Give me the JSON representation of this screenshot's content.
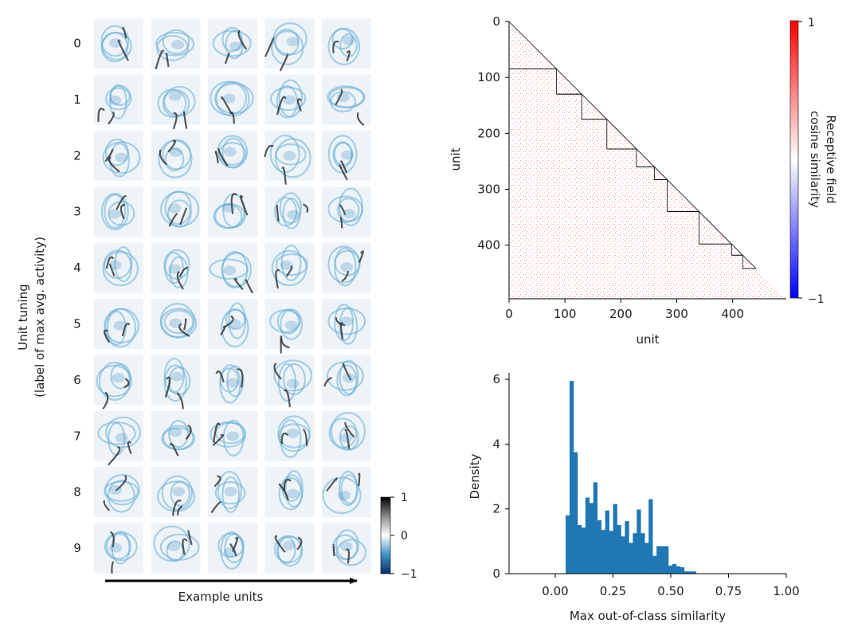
{
  "chart_data": [
    {
      "type": "heatmap",
      "title": "",
      "ylabel_line1": "Unit tuning",
      "ylabel_line2": "(label of max avg. activity)",
      "xlabel": "Example units",
      "row_labels": [
        "0",
        "1",
        "2",
        "3",
        "4",
        "5",
        "6",
        "7",
        "8",
        "9"
      ],
      "columns_per_row": 5,
      "colorbar": {
        "range": [
          -1,
          1
        ],
        "ticks": [
          "1",
          "0",
          "−1"
        ],
        "colors": [
          "#08306b",
          "#ffffff",
          "#000000"
        ]
      }
    },
    {
      "type": "heatmap",
      "title": "",
      "xlabel": "unit",
      "ylabel": "unit",
      "xlim": [
        0,
        496
      ],
      "ylim": [
        496,
        0
      ],
      "xticks": [
        "0",
        "100",
        "200",
        "300",
        "400"
      ],
      "yticks": [
        "0",
        "100",
        "200",
        "300",
        "400"
      ],
      "tick_values": [
        0,
        100,
        200,
        300,
        400
      ],
      "class_boundaries": [
        0,
        85,
        130,
        175,
        228,
        260,
        283,
        340,
        398,
        418,
        442
      ],
      "colorbar": {
        "label_line1": "Receptive field",
        "label_line2": "cosine similarity",
        "range": [
          -1,
          1
        ],
        "ticks": [
          "1",
          "−1"
        ],
        "colors": [
          "#0000ff",
          "#ffffff",
          "#ff0000"
        ]
      }
    },
    {
      "type": "bar",
      "title": "",
      "xlabel": "Max out-of-class similarity",
      "ylabel": "Density",
      "xlim": [
        -0.2,
        1.0
      ],
      "ylim": [
        0,
        6.2
      ],
      "xticks": [
        "0.00",
        "0.25",
        "0.50",
        "0.75",
        "1.00"
      ],
      "xtick_values": [
        0,
        0.25,
        0.5,
        0.75,
        1.0
      ],
      "yticks": [
        "0",
        "2",
        "4",
        "6"
      ],
      "ytick_values": [
        0,
        2,
        4,
        6
      ],
      "bin_start": 0.045,
      "bin_width": 0.0171,
      "values": [
        1.8,
        5.95,
        3.75,
        1.5,
        1.42,
        2.35,
        2.18,
        2.82,
        1.65,
        1.35,
        1.95,
        1.32,
        2.15,
        1.5,
        1.15,
        1.62,
        0.95,
        1.25,
        1.98,
        1.25,
        0.95,
        2.3,
        0.55,
        0.85,
        0.85,
        0.85,
        0.25,
        0.3,
        0.23,
        0.2,
        0.07,
        0.07,
        0.07
      ],
      "bar_color": "#1f77b4"
    }
  ]
}
